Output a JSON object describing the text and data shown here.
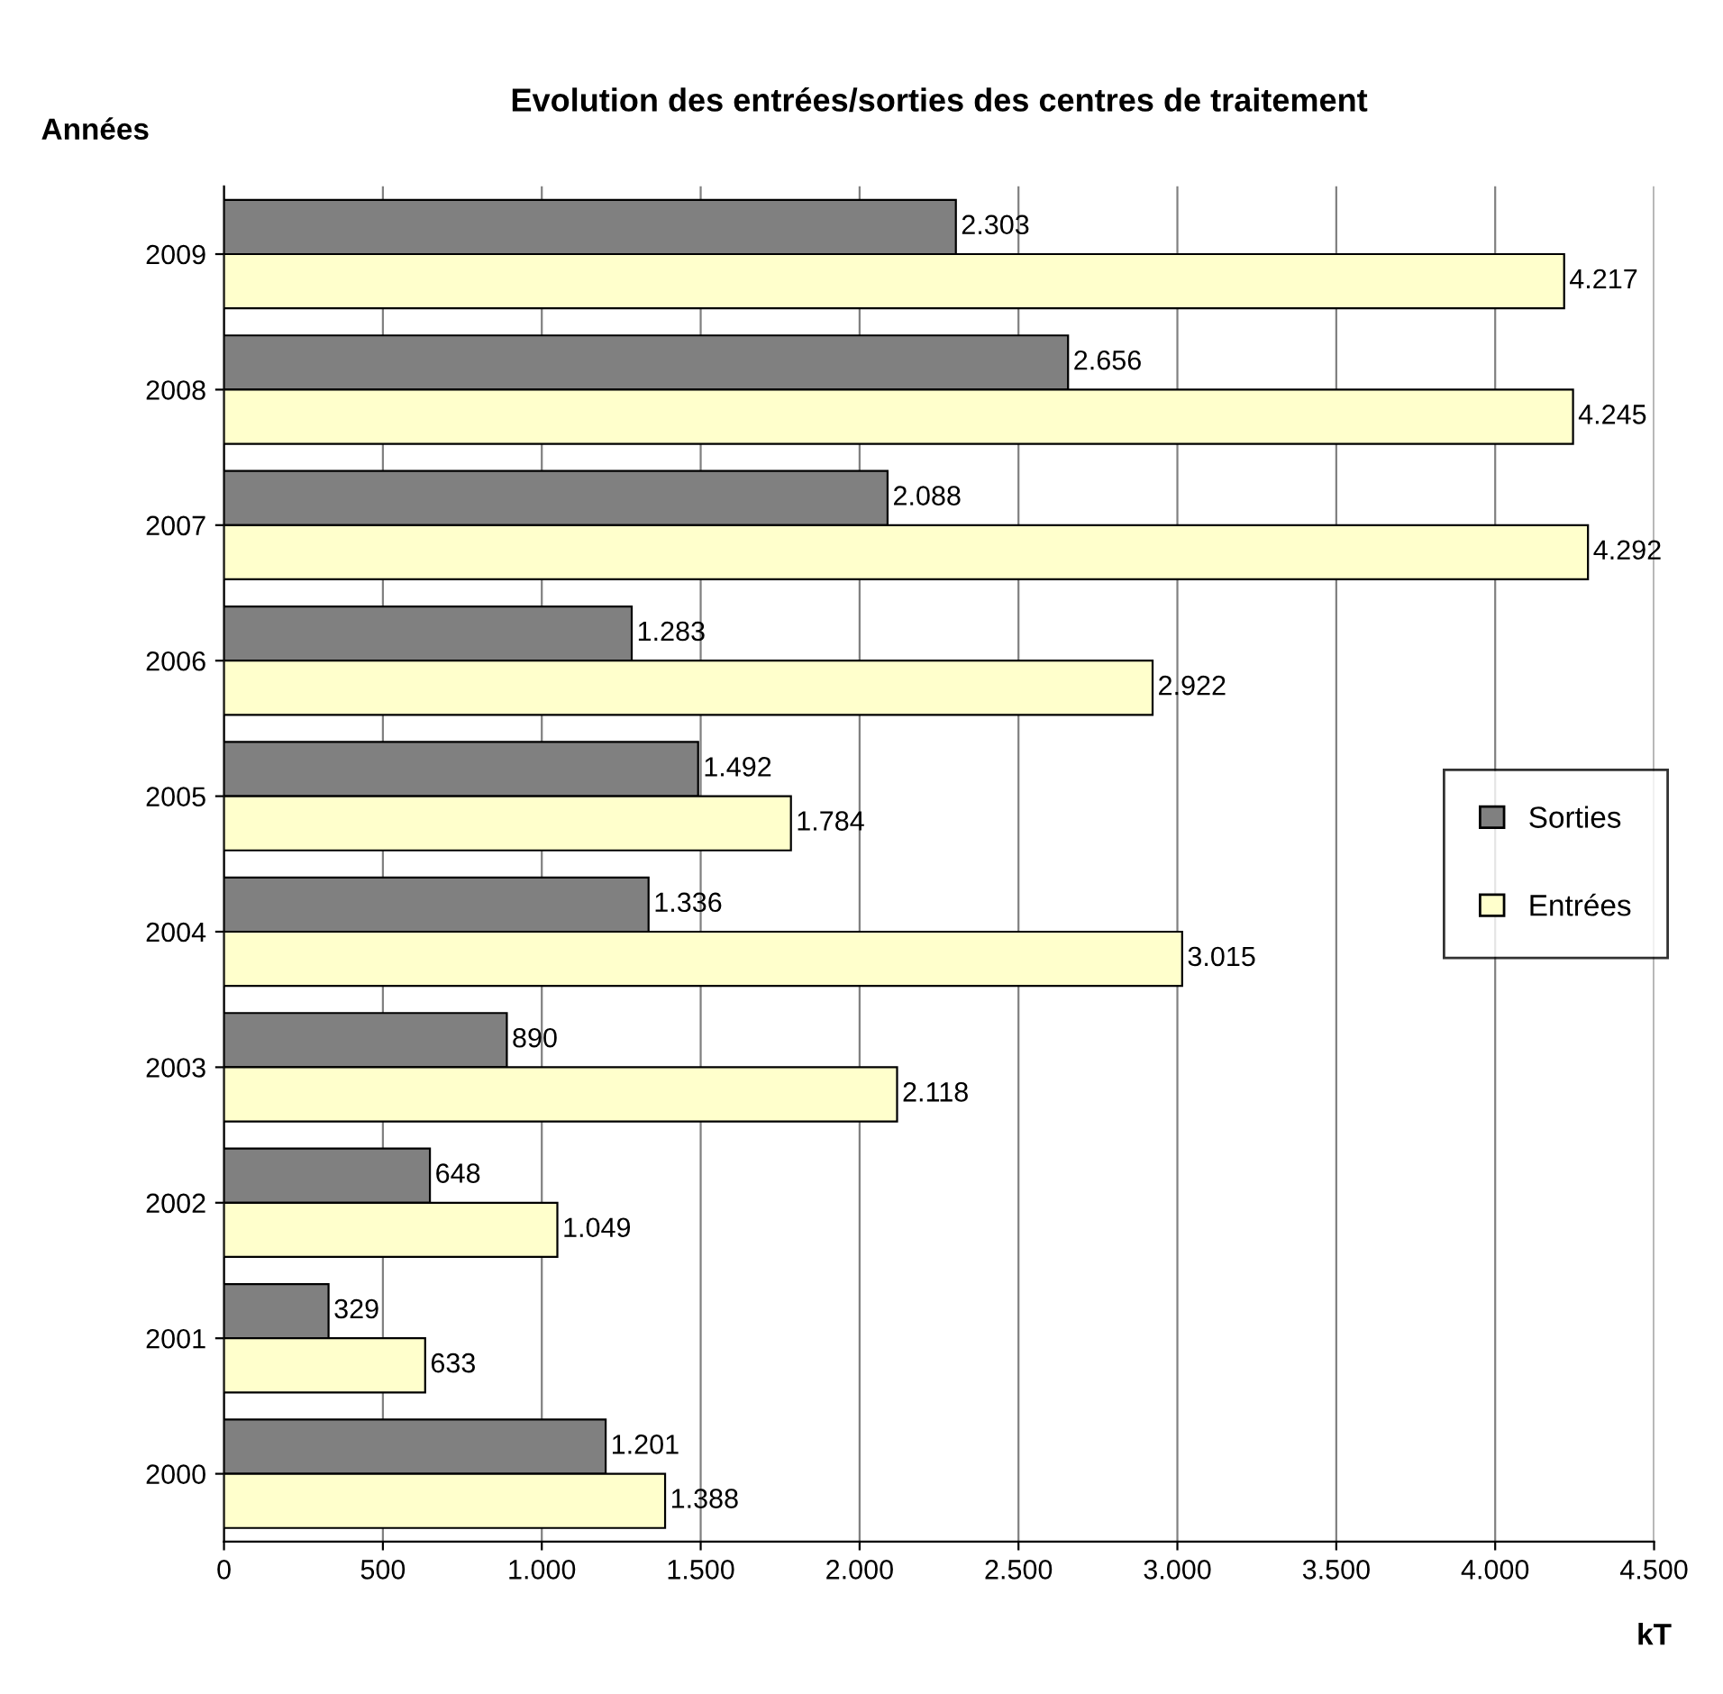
{
  "chart_data": {
    "type": "bar",
    "orientation": "horizontal",
    "title": "Evolution des entrées/sorties des centres de traitement",
    "xlabel": "kT",
    "ylabel": "Années",
    "categories": [
      "2009",
      "2008",
      "2007",
      "2006",
      "2005",
      "2004",
      "2003",
      "2002",
      "2001",
      "2000"
    ],
    "series": [
      {
        "name": "Sorties",
        "color": "#808080",
        "values": [
          2303,
          2656,
          2088,
          1283,
          1492,
          1336,
          890,
          648,
          329,
          1201
        ],
        "value_labels": [
          "2.303",
          "2.656",
          "2.088",
          "1.283",
          "1.492",
          "1.336",
          "890",
          "648",
          "329",
          "1.201"
        ]
      },
      {
        "name": "Entrées",
        "color": "#ffffcc",
        "values": [
          4217,
          4245,
          4292,
          2922,
          1784,
          3015,
          2118,
          1049,
          633,
          1388
        ],
        "value_labels": [
          "4.217",
          "4.245",
          "4.292",
          "2.922",
          "1.784",
          "3.015",
          "2.118",
          "1.049",
          "633",
          "1.388"
        ]
      }
    ],
    "xlim": [
      0,
      4500
    ],
    "xticks": [
      0,
      500,
      {
        "value": 1000,
        "label": "1.000"
      },
      {
        "value": 1500,
        "label": "1.500"
      },
      {
        "value": 2000,
        "label": "2.000"
      },
      {
        "value": 2500,
        "label": "2.500"
      },
      {
        "value": 3000,
        "label": "3.000"
      },
      {
        "value": 3500,
        "label": "3.500"
      },
      {
        "value": 4000,
        "label": "4.000"
      },
      {
        "value": 4500,
        "label": "4.500"
      }
    ],
    "grid": "x",
    "legend": "right"
  }
}
